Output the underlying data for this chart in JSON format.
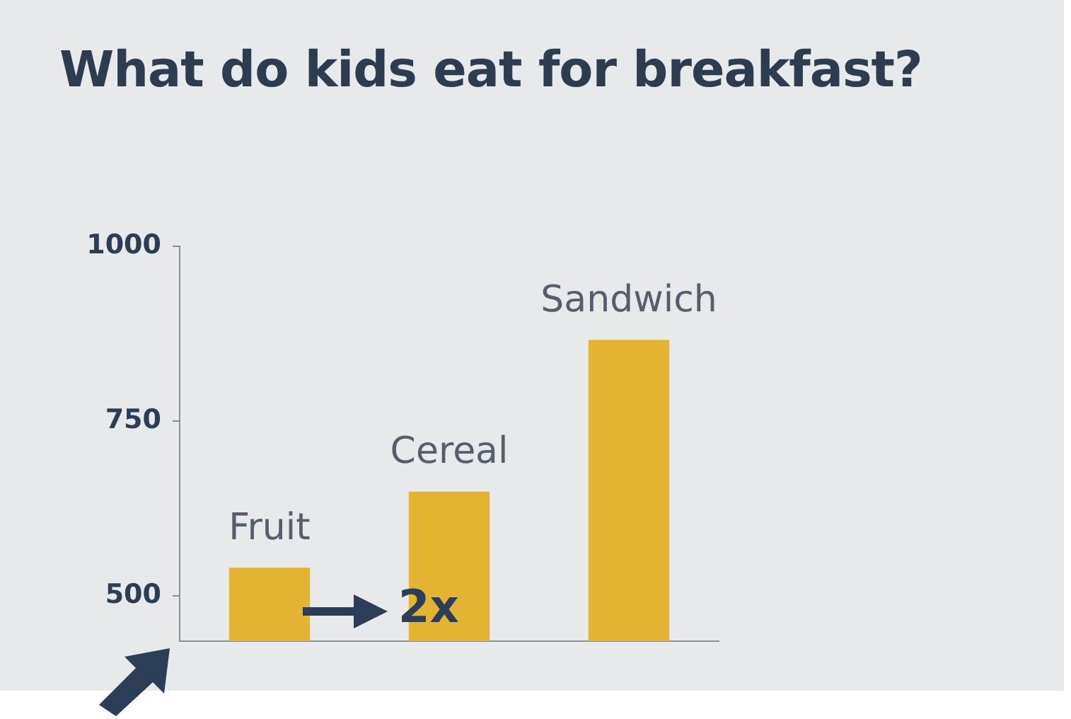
{
  "chart_data": {
    "type": "bar",
    "title": "What do kids eat for breakfast?",
    "categories": [
      "Fruit",
      "Cereal",
      "Sandwich"
    ],
    "values": [
      540,
      649,
      866
    ],
    "color": "#e3b432",
    "ylim": [
      435,
      1000
    ],
    "yticks": [
      500,
      750,
      1000
    ],
    "grid": false,
    "legend": false,
    "annotations": [
      "2x"
    ]
  }
}
